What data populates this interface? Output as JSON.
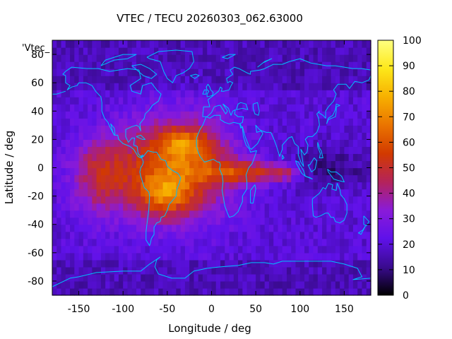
{
  "chart_data": {
    "type": "heatmap",
    "title": "VTEC / TECU 20260303_062.63000",
    "xlabel": "Longitude / deg",
    "ylabel": "Latitude / deg",
    "plot_title": "'Vtec_",
    "xlim": [
      -180,
      180
    ],
    "ylim": [
      -90,
      90
    ],
    "xticks": [
      -150,
      -100,
      -50,
      0,
      50,
      100,
      150
    ],
    "yticks": [
      -80,
      -60,
      -40,
      -20,
      0,
      20,
      40,
      60,
      80
    ],
    "colorbar": {
      "range": [
        0,
        100
      ],
      "ticks": [
        0,
        10,
        20,
        30,
        40,
        50,
        60,
        70,
        80,
        90,
        100
      ],
      "palette": [
        "#000000",
        "#3a0b8f",
        "#5f11ea",
        "#8a1bd8",
        "#b4235a",
        "#d23a00",
        "#ea7400",
        "#f7b000",
        "#fde81a",
        "#ffff80"
      ]
    },
    "grid": {
      "lon_step": 5,
      "lat_step": 5
    },
    "features": {
      "background_tec": 20,
      "main_peak": {
        "lon": -40,
        "lat": 0,
        "value": 93
      },
      "southern_crest": {
        "lon": -55,
        "lat": -20,
        "value": 90
      },
      "northern_crest": {
        "lon": -30,
        "lat": 18,
        "value": 85
      },
      "africa_tongue": {
        "lon_range": [
          0,
          95
        ],
        "lat": -3,
        "value": 55
      },
      "pacific_arm": {
        "lon": -125,
        "lat": -5,
        "value": 55
      }
    },
    "coastline_color": "#00bfff"
  }
}
